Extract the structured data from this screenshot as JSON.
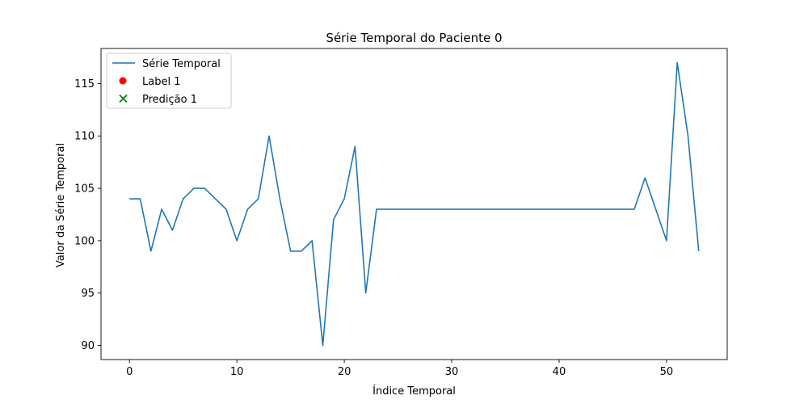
{
  "chart_data": {
    "type": "line",
    "title": "Série Temporal do Paciente 0",
    "xlabel": "Índice Temporal",
    "ylabel": "Valor da Série Temporal",
    "xlim": [
      -2.65,
      55.65
    ],
    "ylim": [
      88.65,
      118.35
    ],
    "xticks": [
      0,
      10,
      20,
      30,
      40,
      50
    ],
    "yticks": [
      90,
      95,
      100,
      105,
      110,
      115
    ],
    "grid": false,
    "legend_position": "upper-left",
    "series": [
      {
        "name": "Série Temporal",
        "kind": "line",
        "color": "#1f77b4",
        "x": [
          0,
          1,
          2,
          3,
          4,
          5,
          6,
          7,
          8,
          9,
          10,
          11,
          12,
          13,
          14,
          15,
          16,
          17,
          18,
          19,
          20,
          21,
          22,
          23,
          24,
          25,
          26,
          27,
          28,
          29,
          30,
          31,
          32,
          33,
          34,
          35,
          36,
          37,
          38,
          39,
          40,
          41,
          42,
          43,
          44,
          45,
          46,
          47,
          48,
          49,
          50,
          51,
          52,
          53
        ],
        "values": [
          104,
          104,
          99,
          103,
          101,
          104,
          105,
          105,
          104,
          103,
          100,
          103,
          104,
          110,
          104,
          99,
          99,
          100,
          90,
          102,
          104,
          109,
          95,
          103,
          103,
          103,
          103,
          103,
          103,
          103,
          103,
          103,
          103,
          103,
          103,
          103,
          103,
          103,
          103,
          103,
          103,
          103,
          103,
          103,
          103,
          103,
          103,
          103,
          106,
          103,
          100,
          117,
          110,
          99
        ]
      },
      {
        "name": "Label 1",
        "kind": "scatter",
        "marker": "circle",
        "color": "#ff0000",
        "x": [],
        "values": []
      },
      {
        "name": "Predição 1",
        "kind": "scatter",
        "marker": "x",
        "color": "#008000",
        "x": [],
        "values": []
      }
    ]
  }
}
